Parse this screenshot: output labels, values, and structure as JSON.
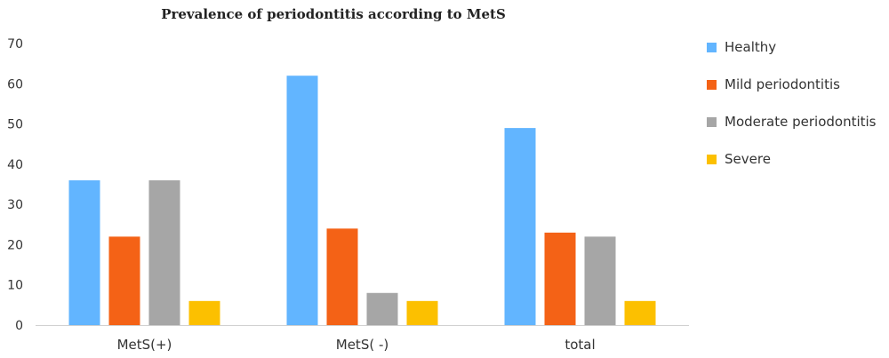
{
  "chart_data": {
    "type": "bar",
    "title": "Prevalence of periodontitis according to MetS",
    "categories": [
      "MetS(+)",
      "MetS( -)",
      "total"
    ],
    "series": [
      {
        "name": "Healthy",
        "color": "#62b5ff",
        "values": [
          36,
          62,
          49
        ]
      },
      {
        "name": "Mild periodontitis",
        "color": "#f46216",
        "values": [
          22,
          24,
          23
        ]
      },
      {
        "name": "Moderate periodontitis",
        "color": "#a6a6a6",
        "values": [
          36,
          8,
          22
        ]
      },
      {
        "name": "Severe",
        "color": "#fcc000",
        "values": [
          6,
          6,
          6
        ]
      }
    ],
    "ylim": [
      0,
      70
    ],
    "yticks": [
      0,
      10,
      20,
      30,
      40,
      50,
      60,
      70
    ],
    "grid": false,
    "legend": "right"
  }
}
